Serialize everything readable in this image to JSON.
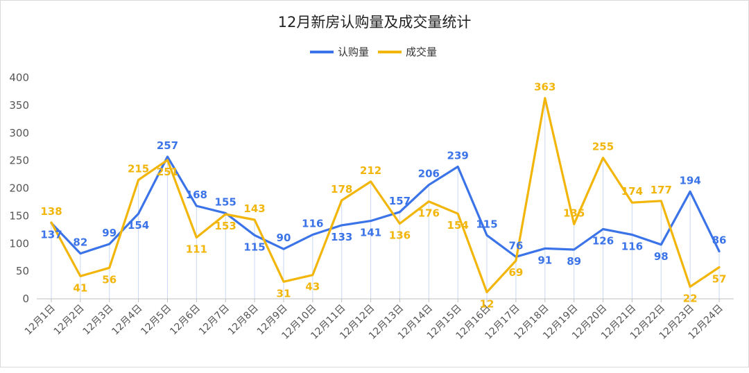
{
  "chart_data": {
    "type": "line",
    "title": "12月新房认购量及成交量统计",
    "categories": [
      "12月1日",
      "12月2日",
      "12月3日",
      "12月4日",
      "12月5日",
      "12月6日",
      "12月7日",
      "12月8日",
      "12月9日",
      "12月10日",
      "12月11日",
      "12月12日",
      "12月13日",
      "12月14日",
      "12月15日",
      "12月16日",
      "12月17日",
      "12月18日",
      "12月19日",
      "12月20日",
      "12月21日",
      "12月22日",
      "12月23日",
      "12月24日"
    ],
    "series": [
      {
        "name": "认购量",
        "color": "#3b73e8",
        "values": [
          137,
          82,
          99,
          154,
          257,
          168,
          155,
          115,
          90,
          116,
          133,
          141,
          157,
          206,
          239,
          115,
          76,
          91,
          89,
          126,
          116,
          98,
          194,
          86
        ]
      },
      {
        "name": "成交量",
        "color": "#f2b50a",
        "values": [
          138,
          41,
          56,
          215,
          251,
          111,
          153,
          143,
          31,
          43,
          178,
          212,
          136,
          176,
          154,
          12,
          69,
          363,
          135,
          255,
          174,
          177,
          22,
          57
        ]
      }
    ],
    "ylim": [
      0,
      400
    ],
    "yticks": [
      "0",
      "50",
      "100",
      "150",
      "200",
      "250",
      "300",
      "350",
      "400"
    ],
    "legend_position": "top-center",
    "grid": false
  }
}
